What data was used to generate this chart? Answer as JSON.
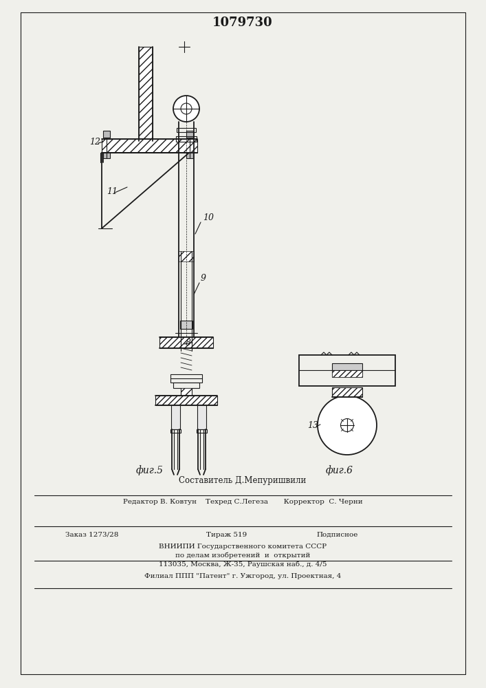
{
  "patent_number": "1079730",
  "fig5_label": "фиг.5",
  "fig6_label": "фиг.6",
  "label_12": "12",
  "label_11": "11",
  "label_10": "10",
  "label_9": "9",
  "label_8": "8",
  "label_13": "13",
  "footer_line1": "Составитель Д.Мепуришвили",
  "footer_line2": "Редактор В. Ковтун    Техред С.Легеза       Корректор  С. Черни",
  "footer_line3": "Заказ 1273/28         Тираж 519             Подписное",
  "footer_line4": "ВНИИПИ Государственного комитета СССР",
  "footer_line5": "по делам изобретений  и  открытий",
  "footer_line6": "113035, Москва, Ж-35, Раушская наб., д. 4/5",
  "footer_line7": "Филиал ППП \"Патент\" г. Ужгород, ул. Проектная, 4",
  "bg_color": "#f0f0eb",
  "line_color": "#1a1a1a"
}
